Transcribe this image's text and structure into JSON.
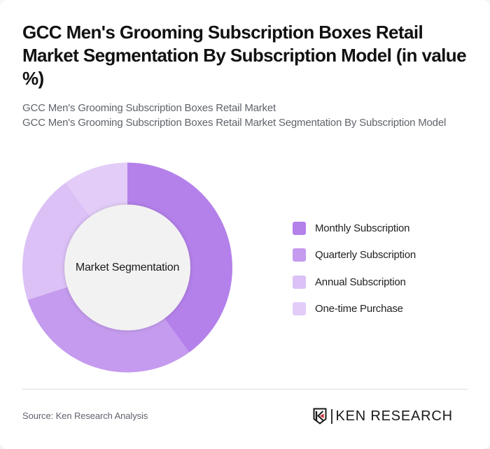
{
  "header": {
    "title": "GCC Men's Grooming Subscription Boxes Retail Market Segmentation By Subscription Model (in value %)",
    "subtitle_line1": "GCC Men's Grooming Subscription Boxes Retail Market",
    "subtitle_line2": "GCC Men's Grooming Subscription Boxes Retail Market Segmentation By Subscription Model"
  },
  "chart_data": {
    "type": "pie",
    "variant": "donut",
    "title": "GCC Men's Grooming Subscription Boxes Retail Market Segmentation By Subscription Model (in value %)",
    "center_label": "Market Segmentation",
    "categories": [
      "Monthly Subscription",
      "Quarterly Subscription",
      "Annual Subscription",
      "One-time Purchase"
    ],
    "values": [
      40,
      30,
      20,
      10
    ],
    "unit": "%",
    "colors": [
      "#B481EA",
      "#C49BEE",
      "#DBC1F6",
      "#E3CDF8"
    ],
    "start_angle": "12 o'clock, clockwise",
    "legend_position": "right",
    "data_labels": false
  },
  "legend": {
    "items": [
      {
        "label": "Monthly Subscription",
        "color": "#B481EA"
      },
      {
        "label": "Quarterly Subscription",
        "color": "#C49BEE"
      },
      {
        "label": "Annual Subscription",
        "color": "#DBC1F6"
      },
      {
        "label": "One-time Purchase",
        "color": "#E3CDF8"
      }
    ]
  },
  "footer": {
    "source": "Source: Ken Research Analysis",
    "logo_text": "KEN RESEARCH",
    "logo_accent": "#D7282F"
  }
}
